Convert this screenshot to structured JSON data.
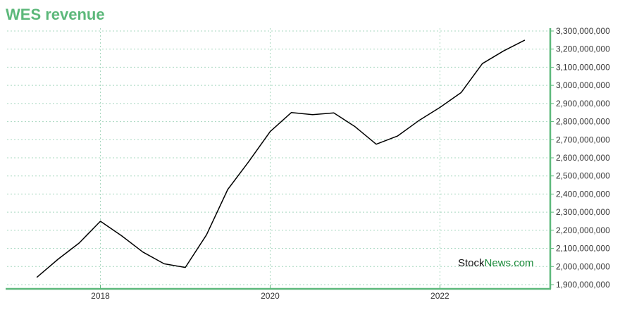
{
  "colors": {
    "title": "#5cb87a",
    "axis": "#5cb87a",
    "grid": "#a8d8c0",
    "line": "#000000",
    "watermark_dark": "#111111",
    "watermark_green": "#1a8a3a"
  },
  "watermark": {
    "part1": "Stock",
    "part2": "News",
    "part3": ".com"
  },
  "chart_data": {
    "type": "line",
    "title": "WES revenue",
    "xlabel": "",
    "ylabel": "",
    "grid": true,
    "y_axis_position": "right",
    "xlim": [
      2016.9,
      2023.3
    ],
    "ylim": [
      1900000000,
      3300000000
    ],
    "x_ticks": [
      2018,
      2020,
      2022
    ],
    "x_tick_labels": [
      "2018",
      "2020",
      "2022"
    ],
    "y_ticks": [
      1900000000,
      2000000000,
      2100000000,
      2200000000,
      2300000000,
      2400000000,
      2500000000,
      2600000000,
      2700000000,
      2800000000,
      2900000000,
      3000000000,
      3100000000,
      3200000000,
      3300000000
    ],
    "y_tick_labels": [
      "1,900,000,000",
      "2,000,000,000",
      "2,100,000,000",
      "2,200,000,000",
      "2,300,000,000",
      "2,400,000,000",
      "2,500,000,000",
      "2,600,000,000",
      "2,700,000,000",
      "2,800,000,000",
      "2,900,000,000",
      "3,000,000,000",
      "3,100,000,000",
      "3,200,000,000",
      "3,300,000,000"
    ],
    "series": [
      {
        "x": [
          2017.25,
          2017.5,
          2017.75,
          2018.0,
          2018.25,
          2018.5,
          2018.75,
          2019.0,
          2019.25,
          2019.5,
          2019.75,
          2020.0,
          2020.25,
          2020.5,
          2020.75,
          2021.0,
          2021.25,
          2021.5,
          2021.75,
          2022.0,
          2022.25,
          2022.5,
          2022.75,
          2023.0
        ],
        "values": [
          1940000000,
          2040000000,
          2130000000,
          2250000000,
          2170000000,
          2080000000,
          2015000000,
          1995000000,
          2175000000,
          2425000000,
          2580000000,
          2745000000,
          2850000000,
          2838000000,
          2848000000,
          2772000000,
          2675000000,
          2720000000,
          2805000000,
          2878000000,
          2960000000,
          3120000000,
          3190000000,
          3250000000
        ]
      }
    ]
  }
}
